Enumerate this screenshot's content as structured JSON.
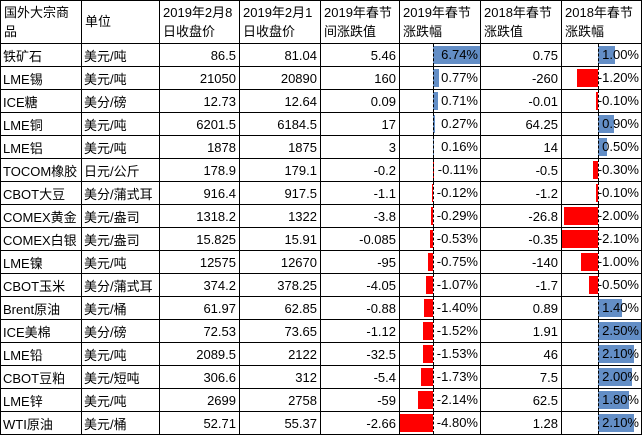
{
  "table": {
    "columns": [
      {
        "key": "name",
        "label": "国外大宗商品"
      },
      {
        "key": "unit",
        "label": "单位"
      },
      {
        "key": "close_feb8",
        "label": "2019年2月8日收盘价"
      },
      {
        "key": "close_feb1",
        "label": "2019年2月1日收盘价"
      },
      {
        "key": "chg_2019",
        "label": "2019年春节间涨跌值"
      },
      {
        "key": "pct_2019",
        "label": "2019年春节涨跌幅"
      },
      {
        "key": "chg_2018",
        "label": "2018年春节涨跌值"
      },
      {
        "key": "pct_2018",
        "label": "2018年春节涨跌幅"
      }
    ],
    "databars": {
      "pct_2019": {
        "min": -4.8,
        "max": 6.74,
        "positive_color": "#638EC6",
        "negative_color": "#FF0000",
        "axis_style": "dashed-black"
      },
      "pct_2018": {
        "min": -2.1,
        "max": 2.5,
        "positive_color": "#638EC6",
        "negative_color": "#FF0000",
        "axis_style": "dashed-black"
      }
    },
    "rows": [
      {
        "name": "铁矿石",
        "unit": "美元/吨",
        "close_feb8": "86.5",
        "close_feb1": "81.04",
        "chg_2019": "5.46",
        "pct_2019": "6.74%",
        "chg_2018": "0.75",
        "pct_2018": "1.00%"
      },
      {
        "name": "LME锡",
        "unit": "美元/吨",
        "close_feb8": "21050",
        "close_feb1": "20890",
        "chg_2019": "160",
        "pct_2019": "0.77%",
        "chg_2018": "-260",
        "pct_2018": "-1.20%"
      },
      {
        "name": "ICE糖",
        "unit": "美分/磅",
        "close_feb8": "12.73",
        "close_feb1": "12.64",
        "chg_2019": "0.09",
        "pct_2019": "0.71%",
        "chg_2018": "-0.01",
        "pct_2018": "-0.10%"
      },
      {
        "name": "LME铜",
        "unit": "美元/吨",
        "close_feb8": "6201.5",
        "close_feb1": "6184.5",
        "chg_2019": "17",
        "pct_2019": "0.27%",
        "chg_2018": "64.25",
        "pct_2018": "0.90%"
      },
      {
        "name": "LME铝",
        "unit": "美元/吨",
        "close_feb8": "1878",
        "close_feb1": "1875",
        "chg_2019": "3",
        "pct_2019": "0.16%",
        "chg_2018": "14",
        "pct_2018": "0.50%"
      },
      {
        "name": "TOCOM橡胶",
        "unit": "日元/公斤",
        "close_feb8": "178.9",
        "close_feb1": "179.1",
        "chg_2019": "-0.2",
        "pct_2019": "-0.11%",
        "chg_2018": "-0.5",
        "pct_2018": "-0.30%"
      },
      {
        "name": "CBOT大豆",
        "unit": "美分/蒲式耳",
        "close_feb8": "916.4",
        "close_feb1": "917.5",
        "chg_2019": "-1.1",
        "pct_2019": "-0.12%",
        "chg_2018": "-1.2",
        "pct_2018": "-0.10%"
      },
      {
        "name": "COMEX黄金",
        "unit": "美元/盎司",
        "close_feb8": "1318.2",
        "close_feb1": "1322",
        "chg_2019": "-3.8",
        "pct_2019": "-0.29%",
        "chg_2018": "-26.8",
        "pct_2018": "-2.00%"
      },
      {
        "name": "COMEX白银",
        "unit": "美元/盎司",
        "close_feb8": "15.825",
        "close_feb1": "15.91",
        "chg_2019": "-0.085",
        "pct_2019": "-0.53%",
        "chg_2018": "-0.35",
        "pct_2018": "-2.10%"
      },
      {
        "name": "LME镍",
        "unit": "美元/吨",
        "close_feb8": "12575",
        "close_feb1": "12670",
        "chg_2019": "-95",
        "pct_2019": "-0.75%",
        "chg_2018": "-140",
        "pct_2018": "-1.00%"
      },
      {
        "name": "CBOT玉米",
        "unit": "美分/蒲式耳",
        "close_feb8": "374.2",
        "close_feb1": "378.25",
        "chg_2019": "-4.05",
        "pct_2019": "-1.07%",
        "chg_2018": "-1.7",
        "pct_2018": "-0.50%"
      },
      {
        "name": "Brent原油",
        "unit": "美元/桶",
        "close_feb8": "61.97",
        "close_feb1": "62.85",
        "chg_2019": "-0.88",
        "pct_2019": "-1.40%",
        "chg_2018": "0.89",
        "pct_2018": "1.40%"
      },
      {
        "name": "ICE美棉",
        "unit": "美分/磅",
        "close_feb8": "72.53",
        "close_feb1": "73.65",
        "chg_2019": "-1.12",
        "pct_2019": "-1.52%",
        "chg_2018": "1.91",
        "pct_2018": "2.50%"
      },
      {
        "name": "LME铅",
        "unit": "美元/吨",
        "close_feb8": "2089.5",
        "close_feb1": "2122",
        "chg_2019": "-32.5",
        "pct_2019": "-1.53%",
        "chg_2018": "46",
        "pct_2018": "2.10%"
      },
      {
        "name": "CBOT豆粕",
        "unit": "美元/短吨",
        "close_feb8": "306.6",
        "close_feb1": "312",
        "chg_2019": "-5.4",
        "pct_2019": "-1.73%",
        "chg_2018": "7.5",
        "pct_2018": "2.00%"
      },
      {
        "name": "LME锌",
        "unit": "美元/吨",
        "close_feb8": "2699",
        "close_feb1": "2758",
        "chg_2019": "-59",
        "pct_2019": "-2.14%",
        "chg_2018": "62.5",
        "pct_2018": "1.80%"
      },
      {
        "name": "WTI原油",
        "unit": "美元/桶",
        "close_feb8": "52.71",
        "close_feb1": "55.37",
        "chg_2019": "-2.66",
        "pct_2019": "-4.80%",
        "chg_2018": "1.28",
        "pct_2018": "2.10%"
      }
    ]
  }
}
